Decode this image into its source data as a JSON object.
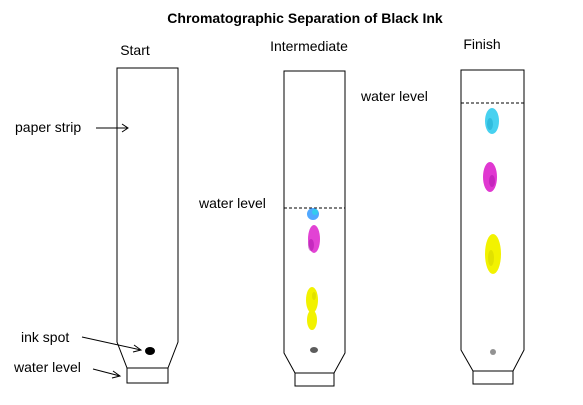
{
  "title": "Chromatographic Separation of Black Ink",
  "stages": [
    {
      "id": "start",
      "label": "Start"
    },
    {
      "id": "intermediate",
      "label": "Intermediate"
    },
    {
      "id": "finish",
      "label": "Finish"
    }
  ],
  "annotations": {
    "paper_strip": "paper strip",
    "ink_spot": "ink spot",
    "water_level_start": "water level",
    "water_level_intermediate": "water level",
    "water_level_finish": "water level"
  },
  "colors": {
    "cyan": "#33ccee",
    "blue": "#3399ff",
    "magenta": "#dd22cc",
    "yellow": "#f2f200",
    "ink": "#000000"
  }
}
